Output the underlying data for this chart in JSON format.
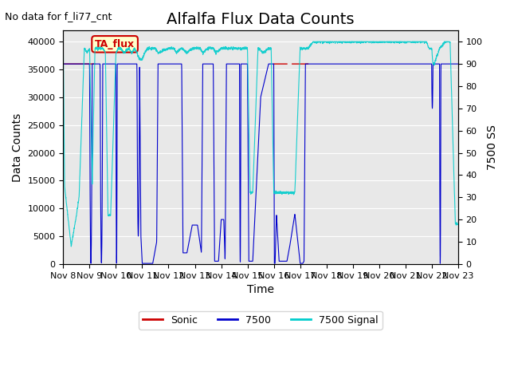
{
  "title": "Alfalfa Flux Data Counts",
  "subtitle": "No data for f_li77_cnt",
  "xlabel": "Time",
  "ylabel_left": "Data Counts",
  "ylabel_right": "7500 SS",
  "annotation": "TA_flux",
  "xlim_days": [
    0,
    15
  ],
  "ylim_left": [
    0,
    42000
  ],
  "ylim_right": [
    0,
    105
  ],
  "yticks_left": [
    0,
    5000,
    10000,
    15000,
    20000,
    25000,
    30000,
    35000,
    40000
  ],
  "yticks_right": [
    0,
    10,
    20,
    30,
    40,
    50,
    60,
    70,
    80,
    90,
    100
  ],
  "xtick_labels": [
    "Nov 8",
    "Nov 9",
    "Nov 10",
    "Nov 11",
    "Nov 12",
    "Nov 13",
    "Nov 14",
    "Nov 15",
    "Nov 16",
    "Nov 17",
    "Nov 18",
    "Nov 19",
    "Nov 20",
    "Nov 21",
    "Nov 22",
    "Nov 23"
  ],
  "sonic_color": "#cc0000",
  "color_7500": "#0000cc",
  "color_7500_signal": "#00cccc",
  "sonic_flat_value": 36000,
  "background_color": "#e8e8e8",
  "title_fontsize": 14,
  "label_fontsize": 10,
  "tick_fontsize": 8
}
